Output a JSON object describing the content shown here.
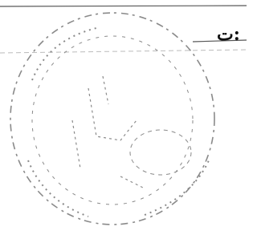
{
  "fragment": {
    "label": "ت:"
  }
}
